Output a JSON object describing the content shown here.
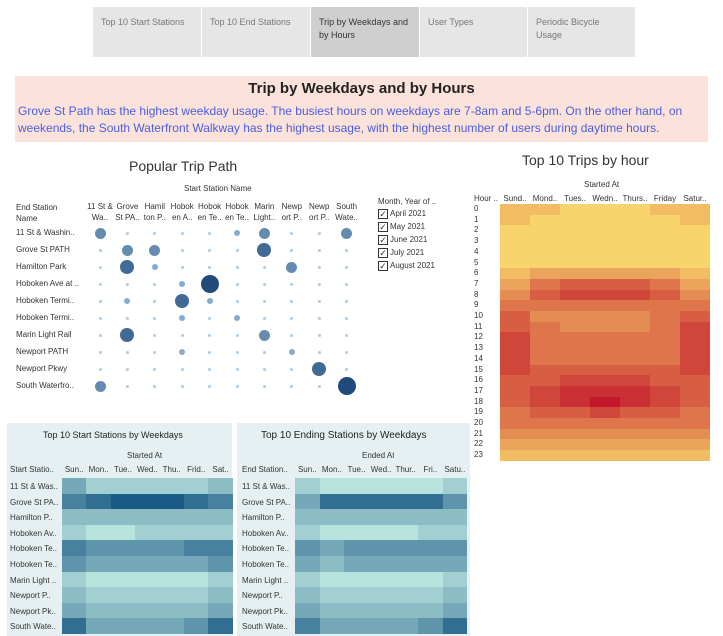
{
  "tabs": [
    "Top 10 Start Stations",
    "Top 10 End Stations",
    "Trip by Weekdays and by Hours",
    "User Types",
    "Periodic Bicycle Usage"
  ],
  "active_tab": 2,
  "banner": {
    "title": "Trip by Weekdays and by Hours",
    "text": "Grove St Path has the highest weekday usage. The busiest hours on weekdays are 7-8am and 5-6pm. On the other hand, on weekends, the South Waterfront Walkway has the highest usage, with the highest number of users during daytime hours."
  },
  "bubble": {
    "title": "Popular Trip Path",
    "col_header": "Start Station Name",
    "row_header": "End Station Name",
    "cols": [
      "11 St & Wa..",
      "Grove St PA..",
      "Hamil ton P..",
      "Hobok en A..",
      "Hobok en Te..",
      "Hobok en Te..",
      "Marin Light..",
      "Newp ort P..",
      "Newp ort P..",
      "South Wate.."
    ],
    "rows": [
      "11 St & Washin..",
      "Grove St PATH",
      "Hamilton Park",
      "Hoboken Ave at ..",
      "Hoboken Termi..",
      "Hoboken Termi..",
      "Marin Light Rail",
      "Newport PATH",
      "Newport Pkwy",
      "South Waterfro.."
    ],
    "sizes": [
      [
        3,
        1,
        1,
        1,
        1,
        2,
        3,
        1,
        1,
        3
      ],
      [
        1,
        3,
        3,
        1,
        1,
        1,
        4,
        1,
        1,
        1
      ],
      [
        1,
        4,
        2,
        1,
        1,
        1,
        1,
        3,
        1,
        1
      ],
      [
        1,
        1,
        1,
        2,
        5,
        1,
        1,
        1,
        1,
        1
      ],
      [
        1,
        2,
        1,
        4,
        2,
        1,
        1,
        1,
        1,
        1
      ],
      [
        1,
        1,
        1,
        2,
        1,
        2,
        1,
        1,
        1,
        1
      ],
      [
        1,
        4,
        1,
        1,
        1,
        1,
        3,
        1,
        1,
        1
      ],
      [
        1,
        1,
        1,
        2,
        1,
        1,
        1,
        2,
        1,
        1
      ],
      [
        1,
        1,
        1,
        1,
        1,
        1,
        1,
        1,
        4,
        1
      ],
      [
        3,
        1,
        1,
        1,
        1,
        1,
        1,
        1,
        1,
        5
      ]
    ]
  },
  "legend": {
    "title": "Month, Year of ..",
    "items": [
      "April 2021",
      "May 2021",
      "June 2021",
      "July 2021",
      "August 2021"
    ]
  },
  "hour_heatmap": {
    "title": "Top 10 Trips by hour",
    "col_header": "Started At",
    "row_header": "Hour ..",
    "cols": [
      "Sund..",
      "Mond..",
      "Tues..",
      "Wedn..",
      "Thurs..",
      "Friday",
      "Satur.."
    ],
    "rows": [
      "0",
      "1",
      "2",
      "3",
      "4",
      "5",
      "6",
      "7",
      "8",
      "9",
      "10",
      "11",
      "12",
      "13",
      "14",
      "15",
      "16",
      "17",
      "18",
      "19",
      "20",
      "21",
      "22",
      "23"
    ],
    "values": [
      [
        2,
        2,
        1,
        1,
        1,
        2,
        2
      ],
      [
        2,
        1,
        1,
        1,
        1,
        1,
        2
      ],
      [
        1,
        1,
        1,
        1,
        1,
        1,
        1
      ],
      [
        1,
        1,
        1,
        1,
        1,
        1,
        1
      ],
      [
        1,
        1,
        1,
        1,
        1,
        1,
        1
      ],
      [
        1,
        1,
        1,
        1,
        1,
        1,
        1
      ],
      [
        2,
        3,
        3,
        3,
        3,
        3,
        2
      ],
      [
        3,
        5,
        6,
        6,
        6,
        5,
        3
      ],
      [
        4,
        6,
        7,
        7,
        7,
        6,
        4
      ],
      [
        5,
        5,
        5,
        5,
        5,
        5,
        5
      ],
      [
        6,
        4,
        4,
        4,
        4,
        5,
        6
      ],
      [
        6,
        5,
        4,
        4,
        4,
        5,
        7
      ],
      [
        7,
        5,
        5,
        5,
        5,
        5,
        7
      ],
      [
        7,
        5,
        5,
        5,
        5,
        5,
        7
      ],
      [
        7,
        5,
        5,
        5,
        5,
        5,
        7
      ],
      [
        7,
        6,
        6,
        6,
        6,
        6,
        7
      ],
      [
        6,
        6,
        7,
        7,
        7,
        6,
        6
      ],
      [
        6,
        7,
        8,
        8,
        8,
        7,
        6
      ],
      [
        6,
        7,
        8,
        9,
        8,
        7,
        6
      ],
      [
        5,
        6,
        6,
        7,
        6,
        6,
        5
      ],
      [
        5,
        5,
        5,
        5,
        5,
        5,
        5
      ],
      [
        4,
        4,
        4,
        4,
        4,
        4,
        4
      ],
      [
        3,
        3,
        3,
        3,
        3,
        3,
        3
      ],
      [
        2,
        2,
        2,
        2,
        2,
        2,
        2
      ]
    ]
  },
  "start_heatmap": {
    "title": "Top 10 Start Stations by Weekdays",
    "col_header": "Started At",
    "row_header": "Start Statio..",
    "cols": [
      "Sun..",
      "Mon..",
      "Tue..",
      "Wed..",
      "Thu..",
      "Frid..",
      "Sat.."
    ],
    "rows": [
      "11 St & Was..",
      "Grove St PA..",
      "Hamilton P..",
      "Hoboken Av..",
      "Hoboken Te..",
      "Hoboken Te..",
      "Marin Light ..",
      "Newport P..",
      "Newport Pk..",
      "South Wate.."
    ],
    "values": [
      [
        4,
        2,
        2,
        2,
        2,
        2,
        3
      ],
      [
        6,
        7,
        8,
        8,
        8,
        7,
        6
      ],
      [
        3,
        3,
        3,
        3,
        3,
        3,
        3
      ],
      [
        2,
        1,
        1,
        2,
        2,
        2,
        2
      ],
      [
        6,
        5,
        5,
        5,
        5,
        6,
        6
      ],
      [
        5,
        4,
        4,
        4,
        4,
        4,
        5
      ],
      [
        2,
        1,
        1,
        1,
        1,
        1,
        2
      ],
      [
        3,
        2,
        2,
        2,
        2,
        2,
        3
      ],
      [
        4,
        3,
        3,
        3,
        3,
        3,
        4
      ],
      [
        7,
        4,
        4,
        4,
        4,
        5,
        7
      ]
    ]
  },
  "end_heatmap": {
    "title": "Top 10 Ending Stations by Weekdays",
    "col_header": "Ended At",
    "row_header": "End Station..",
    "cols": [
      "Sun..",
      "Mon..",
      "Tue..",
      "Wed..",
      "Thur..",
      "Fri..",
      "Satu.."
    ],
    "rows": [
      "11 St & Was..",
      "Grove St PA..",
      "Hamilton P..",
      "Hoboken Av..",
      "Hoboken Te..",
      "Hoboken Te..",
      "Marin Light ..",
      "Newport P..",
      "Newport Pk..",
      "South Wate.."
    ],
    "values": [
      [
        2,
        1,
        1,
        1,
        1,
        1,
        2
      ],
      [
        4,
        7,
        7,
        7,
        7,
        7,
        5
      ],
      [
        3,
        3,
        3,
        3,
        3,
        3,
        3
      ],
      [
        2,
        1,
        1,
        1,
        1,
        2,
        2
      ],
      [
        5,
        4,
        5,
        5,
        5,
        5,
        5
      ],
      [
        4,
        3,
        4,
        4,
        4,
        4,
        4
      ],
      [
        2,
        1,
        1,
        1,
        1,
        1,
        2
      ],
      [
        3,
        2,
        2,
        2,
        2,
        2,
        3
      ],
      [
        4,
        3,
        3,
        3,
        3,
        3,
        4
      ],
      [
        6,
        4,
        4,
        4,
        4,
        5,
        7
      ]
    ]
  },
  "colors": {
    "bubble_light": "#a8cde8",
    "bubble_dark": "#1f4a7a",
    "heat_low": "#f9d36b",
    "heat_high": "#c2172b",
    "teal_low": "#b9e3dd",
    "teal_high": "#1b5a86"
  }
}
